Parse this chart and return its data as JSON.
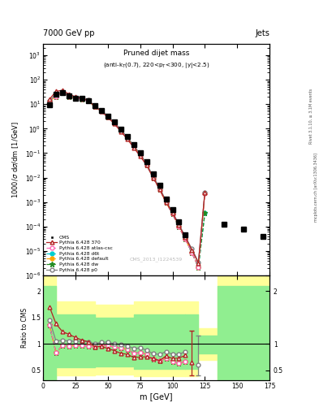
{
  "header_left": "7000 GeV pp",
  "header_right": "Jets",
  "watermark": "CMS_2013_I1224539",
  "right_label_top": "Rivet 3.1.10, ≥ 3.1M events",
  "right_label_bot": "mcplots.cern.ch [arXiv:1306.3436]",
  "cms_x": [
    5,
    10,
    15,
    20,
    25,
    30,
    35,
    40,
    45,
    50,
    55,
    60,
    65,
    70,
    75,
    80,
    85,
    90,
    95,
    100,
    105,
    110,
    140,
    155,
    170
  ],
  "cms_y": [
    9.5,
    25,
    30,
    22,
    18,
    17,
    14,
    8.5,
    5.5,
    3.2,
    1.85,
    0.95,
    0.48,
    0.23,
    0.1,
    0.043,
    0.014,
    0.005,
    0.0013,
    0.0005,
    0.00015,
    4.5e-05,
    0.00012,
    8e-05,
    4e-05
  ],
  "p370_x": [
    5,
    10,
    15,
    20,
    25,
    30,
    35,
    40,
    45,
    50,
    55,
    60,
    65,
    70,
    75,
    80,
    85,
    90,
    95,
    100,
    105,
    110,
    115,
    120,
    125
  ],
  "p370_y": [
    16,
    34,
    37,
    26,
    20,
    18,
    14.5,
    8.0,
    5.2,
    2.9,
    1.6,
    0.78,
    0.38,
    0.17,
    0.075,
    0.032,
    0.01,
    0.0034,
    0.001,
    0.00036,
    0.00011,
    3.5e-05,
    1.1e-05,
    3.2e-06,
    0.0025
  ],
  "p370_ratio": [
    1.7,
    1.38,
    1.23,
    1.18,
    1.12,
    1.07,
    1.04,
    0.94,
    0.95,
    0.91,
    0.87,
    0.82,
    0.8,
    0.74,
    0.75,
    0.75,
    0.72,
    0.68,
    0.77,
    0.72,
    0.73,
    0.78
  ],
  "patlas_x": [
    5,
    10,
    15,
    20,
    25,
    30,
    35,
    40,
    45,
    50,
    55,
    60,
    65,
    70,
    75,
    80,
    85,
    90,
    95,
    100,
    105,
    110,
    115,
    120,
    125
  ],
  "patlas_y": [
    13,
    21,
    29,
    21,
    17.5,
    16.5,
    13.5,
    8.0,
    5.4,
    3.1,
    1.73,
    0.87,
    0.43,
    0.19,
    0.083,
    0.034,
    0.01,
    0.0034,
    0.00095,
    0.00033,
    9.5e-05,
    3e-05,
    8.5e-06,
    2.2e-06,
    0.0023
  ],
  "patlas_ratio": [
    1.35,
    0.83,
    0.97,
    0.96,
    0.97,
    0.97,
    0.96,
    0.94,
    0.98,
    0.97,
    0.94,
    0.92,
    0.9,
    0.82,
    0.83,
    0.8,
    0.71,
    0.68,
    0.73,
    0.66,
    0.63,
    0.67
  ],
  "pd6t_x": [
    5,
    10,
    15,
    20,
    25,
    30,
    35,
    40,
    45,
    50,
    55,
    60,
    65,
    70,
    75,
    80,
    85,
    90,
    95,
    100,
    105,
    110,
    115,
    120,
    125
  ],
  "pd6t_y": [
    13,
    21,
    29,
    21,
    17.5,
    16.5,
    13.5,
    8.0,
    5.4,
    3.1,
    1.73,
    0.87,
    0.43,
    0.19,
    0.083,
    0.034,
    0.01,
    0.0034,
    0.00095,
    0.00033,
    9.5e-05,
    3e-05,
    8.5e-06,
    2.2e-06,
    0.00035
  ],
  "pd6t_ratio": [
    1.35,
    0.83,
    0.97,
    0.96,
    0.97,
    0.97,
    0.96,
    0.94,
    0.98,
    0.97,
    0.94,
    0.92,
    0.9,
    0.82,
    0.83,
    0.8,
    0.71,
    0.68,
    0.73,
    0.66,
    0.63,
    0.67
  ],
  "pdef_x": [
    5,
    10,
    15,
    20,
    25,
    30,
    35,
    40,
    45,
    50,
    55,
    60,
    65,
    70,
    75,
    80,
    85,
    90,
    95,
    100,
    105,
    110,
    115,
    120,
    125
  ],
  "pdef_y": [
    13,
    21,
    29,
    21,
    17.5,
    16.5,
    13.5,
    8.0,
    5.4,
    3.1,
    1.73,
    0.87,
    0.43,
    0.19,
    0.083,
    0.034,
    0.01,
    0.0034,
    0.00095,
    0.00033,
    9.5e-05,
    3e-05,
    8.5e-06,
    2.2e-06,
    0.0023
  ],
  "pdef_ratio": [
    1.35,
    0.83,
    0.97,
    0.96,
    0.97,
    0.97,
    0.96,
    0.94,
    0.98,
    0.97,
    0.94,
    0.92,
    0.9,
    0.82,
    0.83,
    0.8,
    0.71,
    0.68,
    0.73,
    0.66,
    0.63,
    0.67
  ],
  "pdw_x": [
    5,
    10,
    15,
    20,
    25,
    30,
    35,
    40,
    45,
    50,
    55,
    60,
    65,
    70,
    75,
    80,
    85,
    90,
    95,
    100,
    105,
    110,
    115,
    120,
    125
  ],
  "pdw_y": [
    13,
    21,
    29,
    21,
    17.5,
    16.5,
    13.5,
    8.0,
    5.4,
    3.1,
    1.73,
    0.87,
    0.43,
    0.19,
    0.083,
    0.034,
    0.01,
    0.0034,
    0.00095,
    0.00033,
    9.5e-05,
    3e-05,
    8.5e-06,
    2.2e-06,
    0.00035
  ],
  "pdw_ratio": [
    1.35,
    0.83,
    0.97,
    0.96,
    0.97,
    0.97,
    0.96,
    0.94,
    0.98,
    0.97,
    0.94,
    0.92,
    0.9,
    0.82,
    0.83,
    0.8,
    0.71,
    0.68,
    0.73,
    0.66,
    0.63,
    0.67
  ],
  "pp0_x": [
    5,
    10,
    15,
    20,
    25,
    30,
    35,
    40,
    45,
    50,
    55,
    60,
    65,
    70,
    75,
    80,
    85,
    90,
    95,
    100,
    105,
    110,
    115,
    120,
    125
  ],
  "pp0_y": [
    14,
    26,
    32,
    23,
    19,
    17.8,
    14.5,
    8.5,
    5.7,
    3.3,
    1.85,
    0.93,
    0.46,
    0.21,
    0.092,
    0.038,
    0.011,
    0.004,
    0.0011,
    0.0004,
    0.00012,
    3.8e-05,
    1.2e-05,
    3.5e-06,
    0.0024
  ],
  "pp0_ratio": [
    1.45,
    1.05,
    1.07,
    1.05,
    1.05,
    1.05,
    1.04,
    1.0,
    1.03,
    1.03,
    1.0,
    0.98,
    0.96,
    0.91,
    0.92,
    0.88,
    0.81,
    0.8,
    0.85,
    0.8,
    0.8,
    0.85
  ],
  "color_370": "#b22222",
  "color_atlas": "#ff69b4",
  "color_d6t": "#00ced1",
  "color_default": "#ffa500",
  "color_dw": "#228b22",
  "color_p0": "#808080",
  "band_x": [
    0,
    5,
    10,
    40,
    70,
    110,
    120,
    135,
    175
  ],
  "yellow_upper": [
    2.3,
    2.3,
    1.8,
    1.75,
    1.8,
    1.8,
    1.3,
    2.3,
    2.3
  ],
  "yellow_lower": [
    0.3,
    0.3,
    0.4,
    0.42,
    0.38,
    0.38,
    0.7,
    0.3,
    0.3
  ],
  "green_upper": [
    2.1,
    2.1,
    1.55,
    1.5,
    1.55,
    1.55,
    1.15,
    2.1,
    2.1
  ],
  "green_lower": [
    0.3,
    0.3,
    0.55,
    0.57,
    0.52,
    0.52,
    0.82,
    0.3,
    0.3
  ],
  "xlim": [
    0,
    175
  ],
  "ylim_main": [
    1e-06,
    3000
  ],
  "ylim_ratio": [
    0.3,
    2.3
  ]
}
